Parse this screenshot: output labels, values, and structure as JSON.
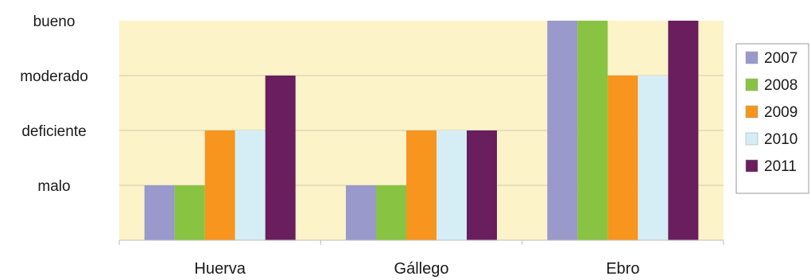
{
  "chart_data": {
    "type": "bar",
    "title": "",
    "xlabel": "",
    "ylabel": "",
    "categories": [
      "Huerva",
      "Gállego",
      "Ebro"
    ],
    "y_levels": [
      "malo",
      "deficiente",
      "moderado",
      "bueno"
    ],
    "ylim": [
      0,
      4
    ],
    "grid": true,
    "legend_position": "right",
    "series": [
      {
        "name": "2007",
        "color": "#9999cc",
        "values": [
          1,
          1,
          4
        ]
      },
      {
        "name": "2008",
        "color": "#88c441",
        "values": [
          1,
          1,
          4
        ]
      },
      {
        "name": "2009",
        "color": "#f7951e",
        "values": [
          2,
          2,
          3
        ]
      },
      {
        "name": "2010",
        "color": "#d5eef5",
        "values": [
          2,
          2,
          3
        ]
      },
      {
        "name": "2011",
        "color": "#6a1e5e",
        "values": [
          3,
          2,
          4
        ]
      }
    ],
    "plot_background": "#fcf3c8"
  }
}
